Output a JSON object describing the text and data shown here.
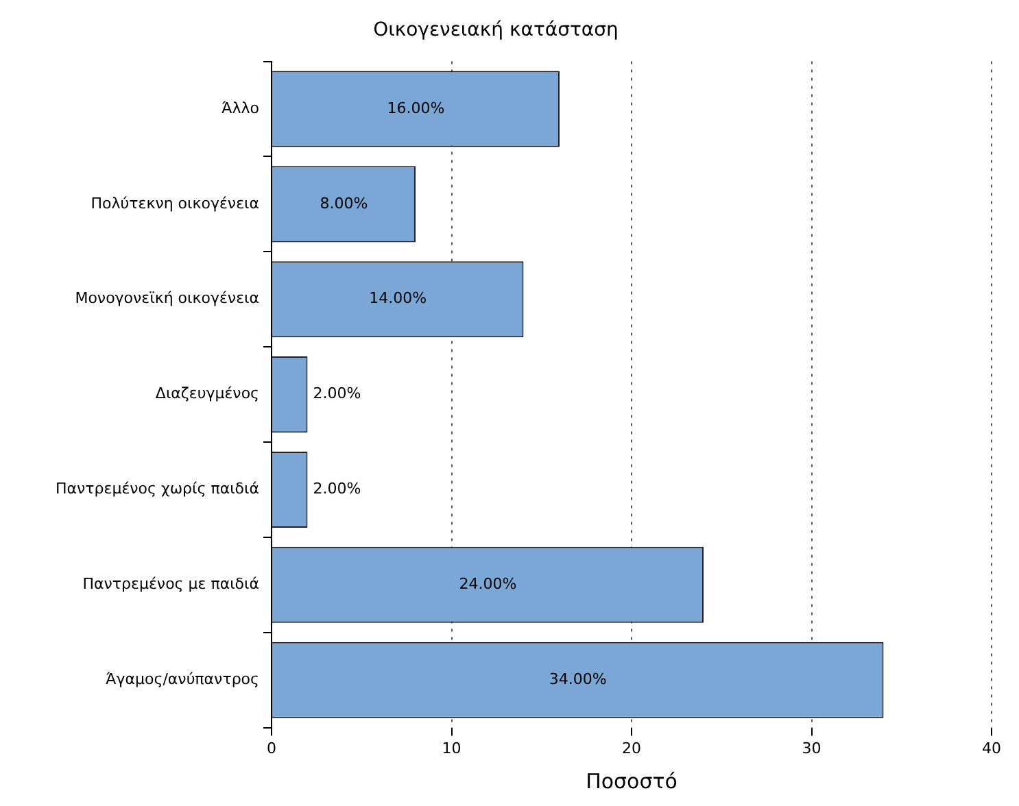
{
  "chart_data": {
    "type": "bar",
    "orientation": "horizontal",
    "title": "Οικογενειακή κατάσταση",
    "xlabel": "Ποσοστό",
    "categories": [
      "Άλλο",
      "Πολύτεκνη οικογένεια",
      "Μονογονεϊκή οικογένεια",
      "Διαζευγμένος",
      "Παντρεμένος χωρίς παιδιά",
      "Παντρεμένος με παιδιά",
      "Άγαμος/ανύπαντρος"
    ],
    "values": [
      16,
      8,
      14,
      2,
      2,
      24,
      34
    ],
    "value_labels": [
      "16.00%",
      "8.00%",
      "14.00%",
      "2.00%",
      "2.00%",
      "24.00%",
      "34.00%"
    ],
    "color": "#7ba7d6",
    "xlim": [
      0,
      40
    ],
    "xticks": [
      0,
      10,
      20,
      30,
      40
    ],
    "grid": "x",
    "line_style": "dotted",
    "legend": false
  }
}
